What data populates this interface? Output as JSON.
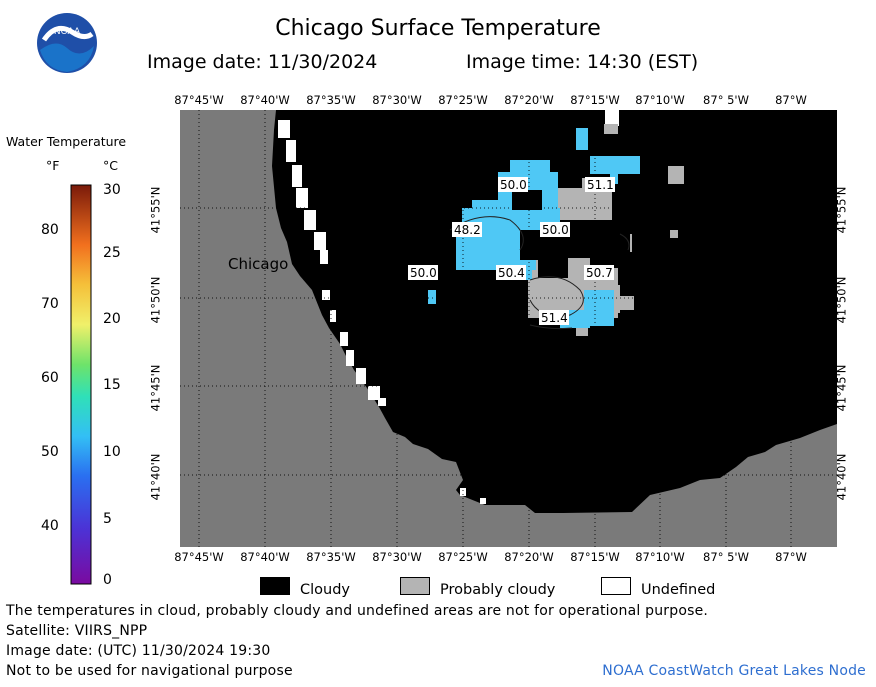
{
  "header": {
    "title": "Chicago Surface Temperature",
    "image_date": "Image date: 11/30/2024",
    "image_time": "Image time: 14:30 (EST)"
  },
  "logo": {
    "text": "NOAA"
  },
  "map": {
    "top_ticks": [
      "87°45'W",
      "87°40'W",
      "87°35'W",
      "87°30'W",
      "87°25'W",
      "87°20'W",
      "87°15'W",
      "87°10'W",
      "87° 5'W",
      "87°W"
    ],
    "bottom_ticks": [
      "87°45'W",
      "87°40'W",
      "87°35'W",
      "87°30'W",
      "87°25'W",
      "87°20'W",
      "87°15'W",
      "87°10'W",
      "87° 5'W",
      "87°W"
    ],
    "left_ticks": [
      "41°55'N",
      "41°50'N",
      "41°45'N",
      "41°40'N"
    ],
    "right_ticks": [
      "41°55'N",
      "41°50'N",
      "41°45'N",
      "41°40'N"
    ],
    "city_label": "Chicago",
    "temp_labels": [
      "50.0",
      "51.1",
      "48.2",
      "50.0",
      "50.0",
      "50.4",
      "50.7",
      "51.4"
    ],
    "colors": {
      "land": "#7a7a7a",
      "cloudy": "#000000",
      "probably_cloudy": "#b4b4b4",
      "undefined": "#ffffff",
      "water": "#4fc8f5"
    }
  },
  "legend": {
    "title": "Water Temperature",
    "unit_f": "°F",
    "unit_c": "°C",
    "f_ticks": [
      "80",
      "70",
      "60",
      "50",
      "40"
    ],
    "c_ticks": [
      "30",
      "25",
      "20",
      "15",
      "10",
      "5",
      "0"
    ]
  },
  "key": {
    "cloudy": "Cloudy",
    "probably_cloudy": "Probably cloudy",
    "undefined": "Undefined"
  },
  "footer": {
    "disclaimer": "The temperatures in cloud, probably cloudy and undefined areas are not for operational purpose.",
    "satellite": "Satellite: VIIRS_NPP",
    "utc_date": "Image date: (UTC) 11/30/2024  19:30",
    "navigation": "Not to be used for navigational purpose",
    "credit": "NOAA CoastWatch Great Lakes Node"
  }
}
